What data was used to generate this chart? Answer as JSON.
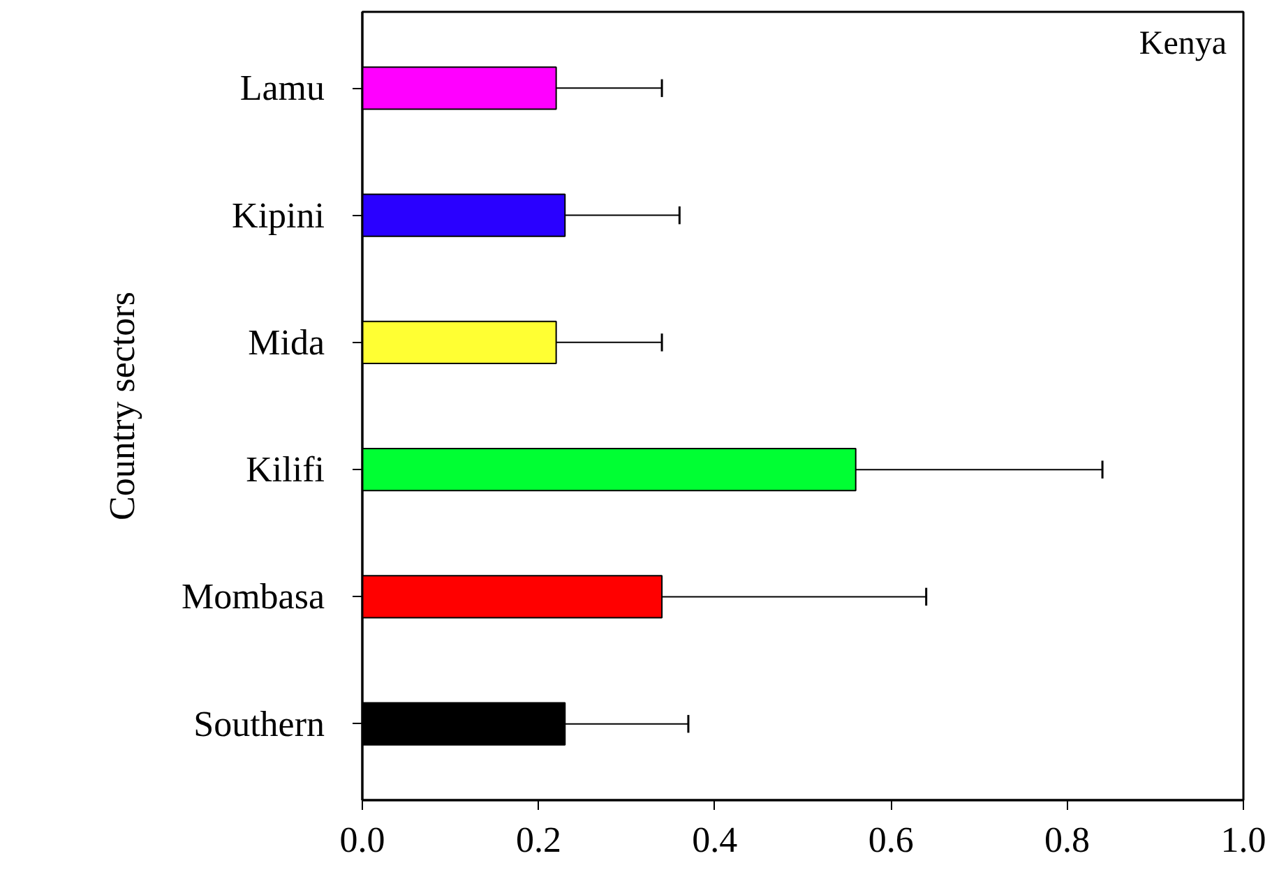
{
  "chart_data": {
    "type": "bar",
    "orientation": "horizontal",
    "ylabel": "Country sectors",
    "categories": [
      "Lamu",
      "Kipini",
      "Mida",
      "Kilifi",
      "Mombasa",
      "Southern"
    ],
    "values": [
      0.22,
      0.23,
      0.22,
      0.56,
      0.34,
      0.23
    ],
    "colors": [
      "#ff00ff",
      "#2a00ff",
      "#ffff33",
      "#00ff33",
      "#ff0000",
      "#000000"
    ],
    "errors": [
      [
        0.22,
        0.34
      ],
      [
        0.23,
        0.36
      ],
      [
        0.22,
        0.34
      ],
      [
        0.56,
        0.84
      ],
      [
        0.34,
        0.64
      ],
      [
        0.23,
        0.37
      ]
    ],
    "xlim": [
      0,
      1.0
    ],
    "xticks": [
      {
        "value": 0,
        "label": "0.0"
      },
      0.2,
      0.4,
      0.6,
      0.8,
      {
        "value": 1.0,
        "label": "1.0"
      }
    ],
    "annotations": [
      "Kenya"
    ],
    "grid": false
  }
}
